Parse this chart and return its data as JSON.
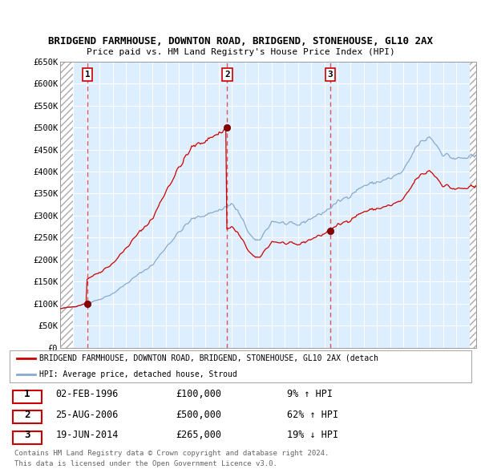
{
  "title1": "BRIDGEND FARMHOUSE, DOWNTON ROAD, BRIDGEND, STONEHOUSE, GL10 2AX",
  "title2": "Price paid vs. HM Land Registry's House Price Index (HPI)",
  "ylabel_ticks": [
    "£0",
    "£50K",
    "£100K",
    "£150K",
    "£200K",
    "£250K",
    "£300K",
    "£350K",
    "£400K",
    "£450K",
    "£500K",
    "£550K",
    "£600K",
    "£650K"
  ],
  "ytick_values": [
    0,
    50000,
    100000,
    150000,
    200000,
    250000,
    300000,
    350000,
    400000,
    450000,
    500000,
    550000,
    600000,
    650000
  ],
  "sale_dates": [
    1996.083,
    2006.646,
    2014.463
  ],
  "sale_prices": [
    100000,
    500000,
    265000
  ],
  "sale_labels": [
    "1",
    "2",
    "3"
  ],
  "red_line_color": "#cc0000",
  "blue_line_color": "#88aacc",
  "sale_marker_color": "#880000",
  "dashed_line_color": "#dd4444",
  "plot_bg_color": "#ddeeff",
  "grid_color": "#ffffff",
  "legend_label_red": "BRIDGEND FARMHOUSE, DOWNTON ROAD, BRIDGEND, STONEHOUSE, GL10 2AX (detach",
  "legend_label_blue": "HPI: Average price, detached house, Stroud",
  "table_rows": [
    [
      "1",
      "02-FEB-1996",
      "£100,000",
      "9% ↑ HPI"
    ],
    [
      "2",
      "25-AUG-2006",
      "£500,000",
      "62% ↑ HPI"
    ],
    [
      "3",
      "19-JUN-2014",
      "£265,000",
      "19% ↓ HPI"
    ]
  ],
  "footnote1": "Contains HM Land Registry data © Crown copyright and database right 2024.",
  "footnote2": "This data is licensed under the Open Government Licence v3.0.",
  "xmin": 1994.0,
  "xmax": 2025.5,
  "ymin": 0,
  "ymax": 650000,
  "data_xstart": 1995.0,
  "data_xend": 2025.0
}
